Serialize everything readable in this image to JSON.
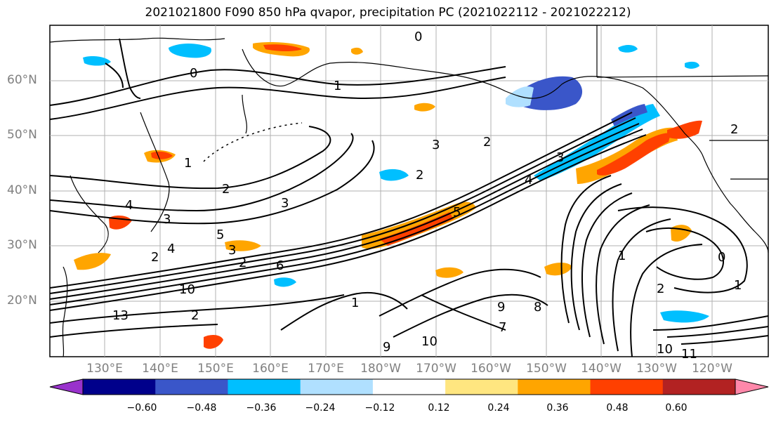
{
  "title": "2021021800 F090 850 hPa qvapor, precipitation PC (2021022112 - 2021022212)",
  "lat_labels": [
    "60°N",
    "50°N",
    "40°N",
    "30°N",
    "20°N"
  ],
  "lon_labels": [
    "130°E",
    "140°E",
    "150°E",
    "160°E",
    "170°E",
    "180°W",
    "170°W",
    "160°W",
    "150°W",
    "140°W",
    "130°W",
    "120°W"
  ],
  "colorbar": {
    "colors": [
      "#9932cc",
      "#00008b",
      "#3a56c9",
      "#00bfff",
      "#b0e0ff",
      "#ffffff",
      "#ffe680",
      "#ffa500",
      "#ff4000",
      "#b22222",
      "#ff88aa"
    ],
    "tick_labels": [
      "−0.60",
      "−0.48",
      "−0.36",
      "−0.24",
      "−0.12",
      "0.12",
      "0.24",
      "0.36",
      "0.48",
      "0.60"
    ]
  },
  "contour_labels": [
    "0",
    "1",
    "0",
    "1",
    "2",
    "2",
    "2",
    "2",
    "3",
    "4",
    "5",
    "3",
    "2",
    "4",
    "2",
    "10",
    "13",
    "3",
    "6",
    "1",
    "9",
    "10",
    "9",
    "7",
    "8",
    "1",
    "2",
    "1",
    "11",
    "10",
    "2",
    "0",
    "3",
    "4",
    "5",
    "3"
  ]
}
